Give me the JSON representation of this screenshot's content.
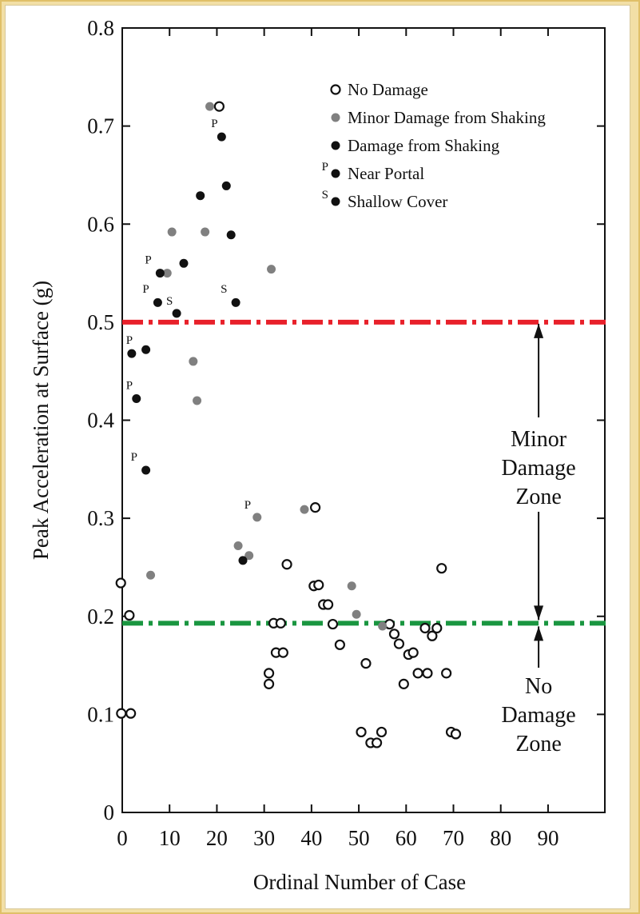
{
  "chart_data": {
    "type": "scatter",
    "xlabel": "Ordinal Number of Case",
    "ylabel": "Peak Acceleration at Surface (g)",
    "xlim": [
      0,
      102
    ],
    "ylim": [
      0,
      0.8
    ],
    "xticks": [
      0,
      10,
      20,
      30,
      40,
      50,
      60,
      70,
      80,
      90
    ],
    "yticks": [
      0,
      0.1,
      0.2,
      0.3,
      0.4,
      0.5,
      0.6,
      0.7,
      0.8
    ],
    "ytick_labels": [
      "0",
      "0.1",
      "0.2",
      "0.3",
      "0.4",
      "0.5",
      "0.6",
      "0.7",
      "0.8"
    ],
    "legend_position": "top-right",
    "legend": [
      {
        "label": "No Damage",
        "marker": "open",
        "prefix": ""
      },
      {
        "label": "Minor Damage from Shaking",
        "marker": "gray",
        "prefix": ""
      },
      {
        "label": "Damage from Shaking",
        "marker": "black",
        "prefix": ""
      },
      {
        "label": "Near Portal",
        "marker": "black",
        "prefix": "P"
      },
      {
        "label": "Shallow Cover",
        "marker": "black",
        "prefix": "S"
      }
    ],
    "colors": {
      "open": "#ffffff",
      "gray": "#808080",
      "black": "#111111",
      "red_line": "#e8202a",
      "green_line": "#1a9640"
    },
    "thresholds": [
      {
        "name": "red-threshold",
        "y": 0.5,
        "color": "#e8202a"
      },
      {
        "name": "green-threshold",
        "y": 0.193,
        "color": "#1a9640"
      }
    ],
    "zones": [
      {
        "name": "minor-damage-zone",
        "lines": [
          "Minor",
          "Damage",
          "Zone"
        ],
        "x": 88,
        "y_from": 0.5,
        "y_to": 0.193
      },
      {
        "name": "no-damage-zone",
        "lines": [
          "No",
          "Damage",
          "Zone"
        ],
        "x": 88,
        "y_from": 0.193,
        "y_to": 0.11
      }
    ],
    "series": [
      {
        "name": "No Damage",
        "marker": "open",
        "points": [
          [
            -0.3,
            0.234
          ],
          [
            1.5,
            0.201
          ],
          [
            -0.2,
            0.101
          ],
          [
            1.8,
            0.101
          ],
          [
            20.5,
            0.72
          ],
          [
            31,
            0.142
          ],
          [
            31,
            0.131
          ],
          [
            32,
            0.193
          ],
          [
            33.5,
            0.193
          ],
          [
            32.5,
            0.163
          ],
          [
            34,
            0.163
          ],
          [
            34.8,
            0.253
          ],
          [
            40.5,
            0.231
          ],
          [
            41.5,
            0.232
          ],
          [
            40.8,
            0.311
          ],
          [
            42.5,
            0.212
          ],
          [
            43.5,
            0.212
          ],
          [
            44.5,
            0.192
          ],
          [
            46,
            0.171
          ],
          [
            50.5,
            0.082
          ],
          [
            51.5,
            0.152
          ],
          [
            52.5,
            0.071
          ],
          [
            53.8,
            0.071
          ],
          [
            54.8,
            0.082
          ],
          [
            56.5,
            0.192
          ],
          [
            57.5,
            0.182
          ],
          [
            58.5,
            0.172
          ],
          [
            59.5,
            0.131
          ],
          [
            60.5,
            0.161
          ],
          [
            61.5,
            0.163
          ],
          [
            62.5,
            0.142
          ],
          [
            64.5,
            0.142
          ],
          [
            64,
            0.188
          ],
          [
            65.5,
            0.18
          ],
          [
            66.5,
            0.188
          ],
          [
            67.5,
            0.249
          ],
          [
            68.5,
            0.142
          ],
          [
            69.5,
            0.082
          ],
          [
            70.5,
            0.08
          ]
        ]
      },
      {
        "name": "Minor Damage from Shaking",
        "marker": "gray",
        "points": [
          [
            18.5,
            0.72
          ],
          [
            10.5,
            0.592
          ],
          [
            17.5,
            0.592
          ],
          [
            9.5,
            0.55
          ],
          [
            15,
            0.46
          ],
          [
            15.8,
            0.42
          ],
          [
            31.5,
            0.554
          ],
          [
            6,
            0.242
          ],
          [
            28.5,
            0.301
          ],
          [
            24.5,
            0.272
          ],
          [
            26.8,
            0.262
          ],
          [
            38.5,
            0.309
          ],
          [
            48.5,
            0.231
          ],
          [
            49.5,
            0.202
          ],
          [
            55,
            0.19
          ]
        ]
      },
      {
        "name": "Damage from Shaking",
        "marker": "black",
        "points": [
          [
            21,
            0.689
          ],
          [
            22,
            0.639
          ],
          [
            16.5,
            0.629
          ],
          [
            23,
            0.589
          ],
          [
            13,
            0.56
          ],
          [
            8,
            0.55
          ],
          [
            7.5,
            0.52
          ],
          [
            11.5,
            0.509
          ],
          [
            24,
            0.52
          ],
          [
            2,
            0.468
          ],
          [
            5,
            0.472
          ],
          [
            3,
            0.422
          ],
          [
            5,
            0.349
          ],
          [
            25.5,
            0.257
          ]
        ]
      }
    ],
    "annotations": [
      {
        "text": "P",
        "x": 19.5,
        "y": 0.699
      },
      {
        "text": "P",
        "x": 5.5,
        "y": 0.56
      },
      {
        "text": "P",
        "x": 5.0,
        "y": 0.53
      },
      {
        "text": "S",
        "x": 10.0,
        "y": 0.518
      },
      {
        "text": "S",
        "x": 21.5,
        "y": 0.53
      },
      {
        "text": "P",
        "x": 1.5,
        "y": 0.478
      },
      {
        "text": "P",
        "x": 1.5,
        "y": 0.432
      },
      {
        "text": "P",
        "x": 2.5,
        "y": 0.359
      },
      {
        "text": "P",
        "x": 26.5,
        "y": 0.31
      }
    ]
  }
}
